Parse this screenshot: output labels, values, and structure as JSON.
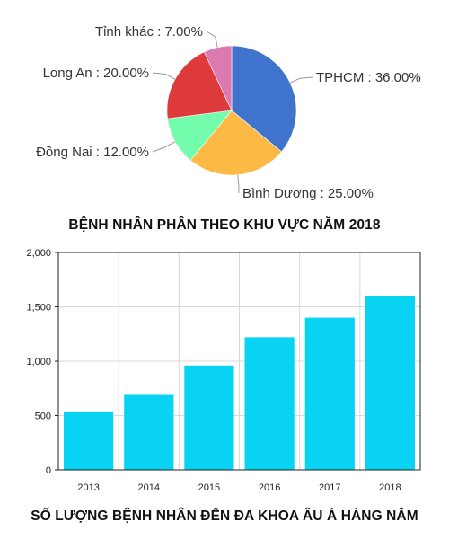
{
  "chart_data": [
    {
      "type": "pie",
      "title": "BỆNH NHÂN PHÂN THEO KHU VỰC NĂM 2018",
      "slices": [
        {
          "label": "TPHCM : 36.00%",
          "value": 36,
          "color": "#3f73cc"
        },
        {
          "label": "Bình Dương : 25.00%",
          "value": 25,
          "color": "#fdb945"
        },
        {
          "label": "Đồng Nai : 12.00%",
          "value": 12,
          "color": "#73fcab"
        },
        {
          "label": "Long An : 20.00%",
          "value": 20,
          "color": "#de3a3b"
        },
        {
          "label": "Tỉnh khác : 7.00%",
          "value": 7,
          "color": "#db79b0"
        }
      ]
    },
    {
      "type": "bar",
      "title": "SỐ LƯỢNG BỆNH NHÂN ĐẾN ĐA KHOA ÂU Á HÀNG NĂM",
      "categories": [
        "2013",
        "2014",
        "2015",
        "2016",
        "2017",
        "2018"
      ],
      "values": [
        530,
        690,
        960,
        1220,
        1400,
        1600
      ],
      "color": "#08d3f2",
      "ylim": [
        0,
        2000
      ],
      "yticks": [
        0,
        500,
        1000,
        1500,
        2000
      ],
      "ytick_labels": [
        "0",
        "500",
        "1,000",
        "1,500",
        "2,000"
      ],
      "grid": true
    }
  ]
}
